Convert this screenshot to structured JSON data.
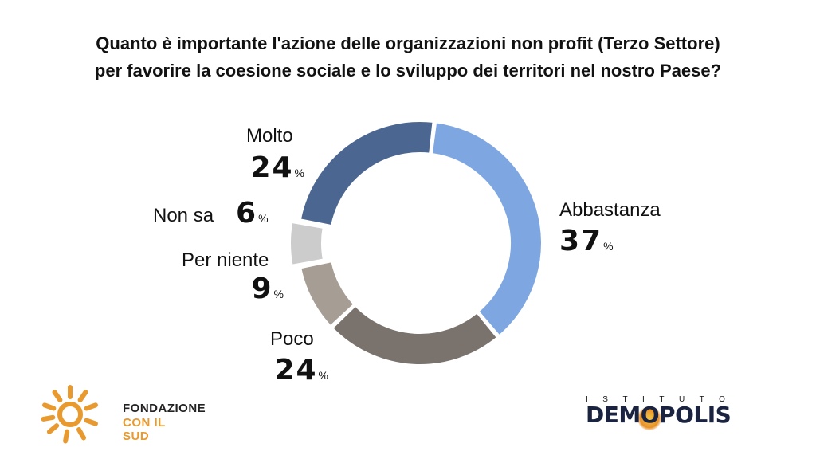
{
  "title": {
    "line1": "Quanto è importante l'azione delle organizzazioni non profit (Terzo Settore)",
    "line2": "per favorire la coesione sociale e lo sviluppo dei territori nel nostro Paese?"
  },
  "chart_data": {
    "type": "pie",
    "variant": "donut",
    "categories": [
      "Abbastanza",
      "Poco",
      "Per niente",
      "Non sa",
      "Molto"
    ],
    "values": [
      37,
      24,
      9,
      6,
      24
    ],
    "value_suffix": "%",
    "colors": [
      "#7ea6e0",
      "#7a726c",
      "#a69d94",
      "#cccccc",
      "#4b6690"
    ]
  },
  "logos": {
    "fondazione_line1": "FONDAZIONE",
    "fondazione_line2": "CON IL SUD",
    "demopolis_top": "ISTITUTO",
    "demopolis_pre": "DEM",
    "demopolis_o": "O",
    "demopolis_post": "POLIS",
    "sun_color": "#e89a2e",
    "demopolis_color": "#1a2340"
  }
}
